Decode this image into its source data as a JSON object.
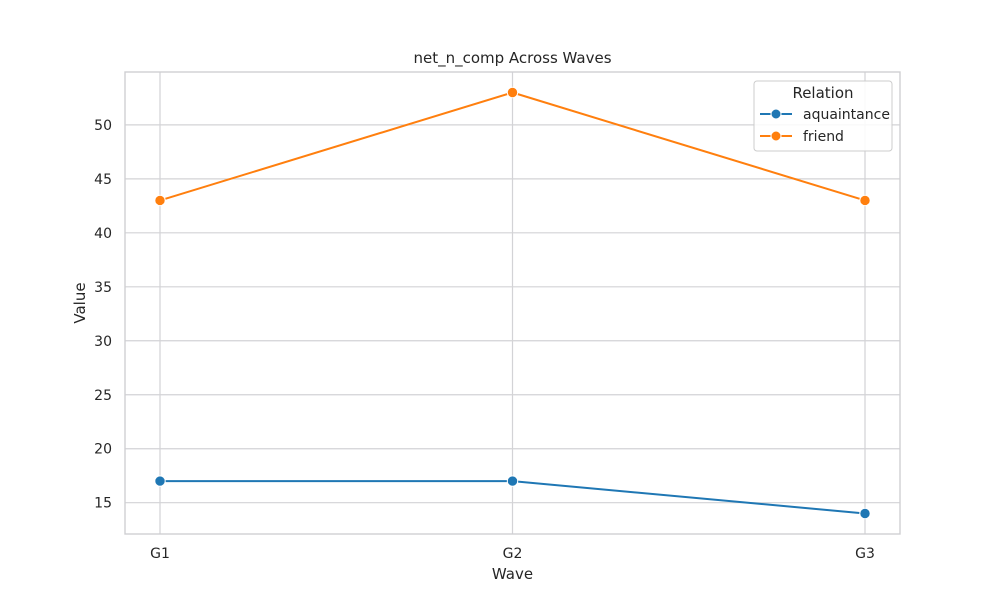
{
  "chart_data": {
    "type": "line",
    "title": "net_n_comp Across Waves",
    "xlabel": "Wave",
    "ylabel": "Value",
    "categories": [
      "G1",
      "G2",
      "G3"
    ],
    "ylim": [
      12.1,
      54.9
    ],
    "yticks": [
      15,
      20,
      25,
      30,
      35,
      40,
      45,
      50
    ],
    "grid": true,
    "legend": {
      "title": "Relation",
      "placement": "top-right"
    },
    "series": [
      {
        "name": "aquaintance",
        "values": [
          17,
          17,
          14
        ],
        "color": "#1f77b4"
      },
      {
        "name": "friend",
        "values": [
          43,
          53,
          43
        ],
        "color": "#ff7f0e"
      }
    ]
  }
}
